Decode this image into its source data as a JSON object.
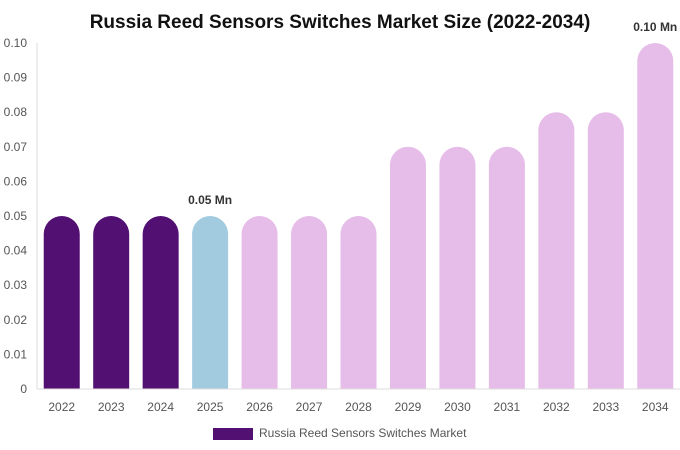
{
  "chart_data": {
    "type": "bar",
    "title": "Russia Reed Sensors Switches Market Size (2022-2034)",
    "categories": [
      "2022",
      "2023",
      "2024",
      "2025",
      "2026",
      "2027",
      "2028",
      "2029",
      "2030",
      "2031",
      "2032",
      "2033",
      "2034"
    ],
    "series": [
      {
        "name": "Russia Reed Sensors Switches Market",
        "values": [
          0.05,
          0.05,
          0.05,
          0.05,
          0.05,
          0.05,
          0.05,
          0.07,
          0.07,
          0.07,
          0.08,
          0.08,
          0.1
        ]
      }
    ],
    "ylim": [
      0,
      0.1
    ],
    "yticks": [
      "0",
      "0.01",
      "0.02",
      "0.03",
      "0.04",
      "0.05",
      "0.06",
      "0.07",
      "0.08",
      "0.09",
      "0.10"
    ],
    "data_labels": [
      {
        "category": "2025",
        "text": "0.05 Mn"
      },
      {
        "category": "2034",
        "text": "0.10 Mn"
      }
    ],
    "colors": {
      "historical": "#521072",
      "current": "#a3cbe0",
      "forecast": "#e6bde9"
    },
    "legend": {
      "label": "Russia Reed Sensors Switches Market",
      "color": "#521072",
      "placement": "bottom"
    },
    "grid": false
  }
}
